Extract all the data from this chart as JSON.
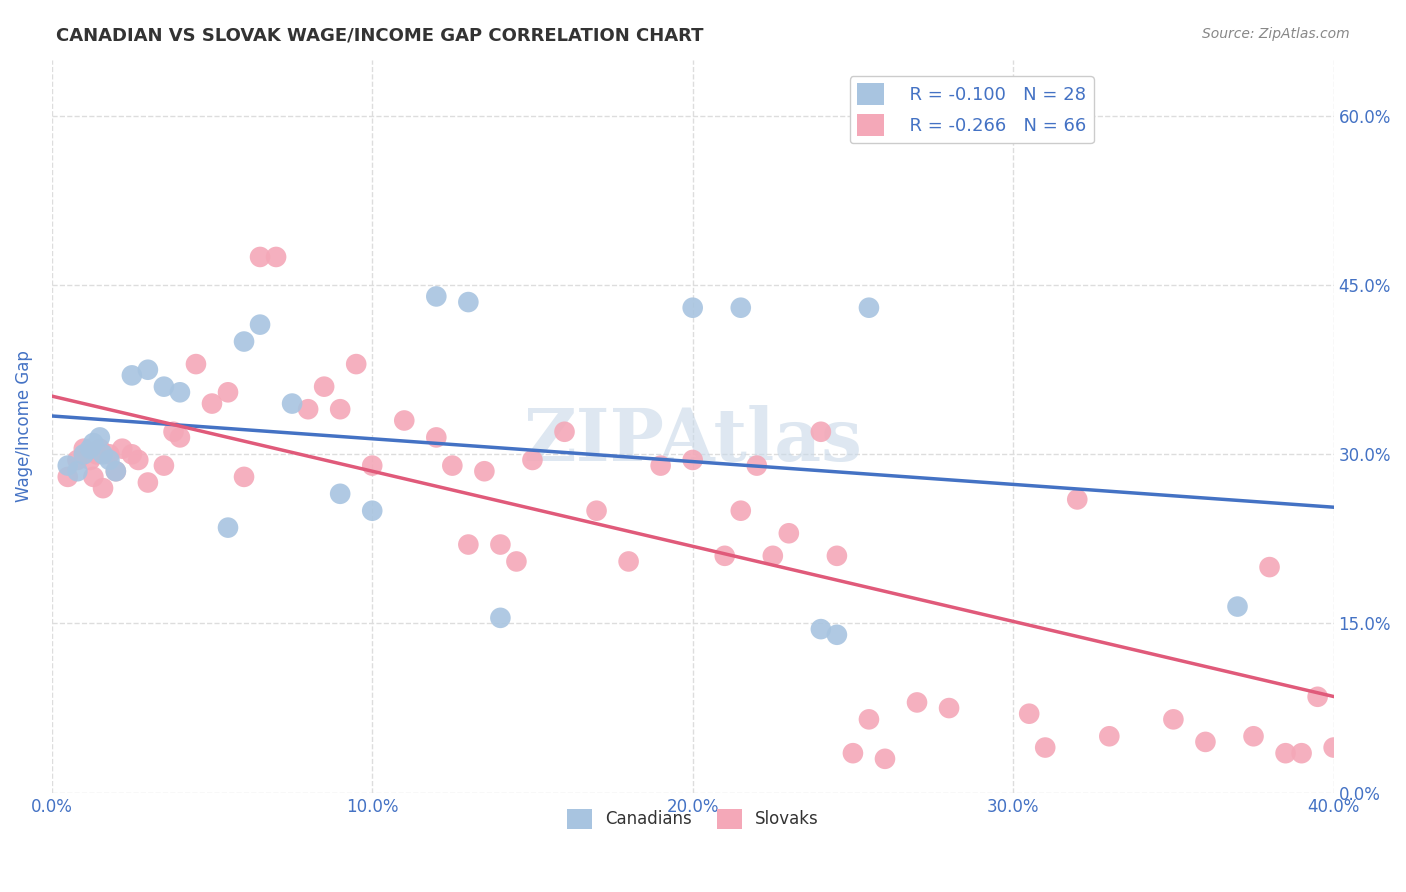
{
  "title": "CANADIAN VS SLOVAK WAGE/INCOME GAP CORRELATION CHART",
  "source_text": "Source: ZipAtlas.com",
  "ylabel": "Wage/Income Gap",
  "xlabel_ticks": [
    "0.0%",
    "10.0%",
    "20.0%",
    "30.0%",
    "40.0%"
  ],
  "ylabel_ticks": [
    "0.0%",
    "15.0%",
    "30.0%",
    "45.0%",
    "60.0%"
  ],
  "xlim": [
    0.0,
    0.4
  ],
  "ylim": [
    0.0,
    0.65
  ],
  "canadians_x": [
    0.005,
    0.008,
    0.01,
    0.012,
    0.013,
    0.015,
    0.016,
    0.018,
    0.02,
    0.025,
    0.03,
    0.035,
    0.04,
    0.055,
    0.06,
    0.065,
    0.075,
    0.09,
    0.1,
    0.12,
    0.13,
    0.14,
    0.2,
    0.215,
    0.24,
    0.245,
    0.255,
    0.37
  ],
  "canadians_y": [
    0.29,
    0.285,
    0.3,
    0.305,
    0.31,
    0.315,
    0.3,
    0.295,
    0.285,
    0.37,
    0.375,
    0.36,
    0.355,
    0.235,
    0.4,
    0.415,
    0.345,
    0.265,
    0.25,
    0.44,
    0.435,
    0.155,
    0.43,
    0.43,
    0.145,
    0.14,
    0.43,
    0.165
  ],
  "slovaks_x": [
    0.005,
    0.008,
    0.01,
    0.012,
    0.013,
    0.014,
    0.015,
    0.016,
    0.018,
    0.02,
    0.022,
    0.025,
    0.027,
    0.03,
    0.035,
    0.038,
    0.04,
    0.045,
    0.05,
    0.055,
    0.06,
    0.065,
    0.07,
    0.08,
    0.085,
    0.09,
    0.095,
    0.1,
    0.11,
    0.12,
    0.125,
    0.13,
    0.135,
    0.14,
    0.145,
    0.15,
    0.16,
    0.17,
    0.18,
    0.19,
    0.2,
    0.21,
    0.215,
    0.22,
    0.225,
    0.23,
    0.24,
    0.245,
    0.25,
    0.255,
    0.26,
    0.27,
    0.28,
    0.3,
    0.305,
    0.31,
    0.32,
    0.33,
    0.35,
    0.36,
    0.375,
    0.38,
    0.385,
    0.39,
    0.395,
    0.4
  ],
  "slovaks_y": [
    0.28,
    0.295,
    0.305,
    0.295,
    0.28,
    0.3,
    0.305,
    0.27,
    0.3,
    0.285,
    0.305,
    0.3,
    0.295,
    0.275,
    0.29,
    0.32,
    0.315,
    0.38,
    0.345,
    0.355,
    0.28,
    0.475,
    0.475,
    0.34,
    0.36,
    0.34,
    0.38,
    0.29,
    0.33,
    0.315,
    0.29,
    0.22,
    0.285,
    0.22,
    0.205,
    0.295,
    0.32,
    0.25,
    0.205,
    0.29,
    0.295,
    0.21,
    0.25,
    0.29,
    0.21,
    0.23,
    0.32,
    0.21,
    0.035,
    0.065,
    0.03,
    0.08,
    0.075,
    0.615,
    0.07,
    0.04,
    0.26,
    0.05,
    0.065,
    0.045,
    0.05,
    0.2,
    0.035,
    0.035,
    0.085,
    0.04
  ],
  "canadian_color": "#a8c4e0",
  "slovak_color": "#f4a8b8",
  "canadian_line_color": "#4472c4",
  "slovak_line_color": "#e05a7a",
  "legend_r_canadian": "R = -0.100",
  "legend_n_canadian": "N = 28",
  "legend_r_slovak": "R = -0.266",
  "legend_n_slovak": "N = 66",
  "legend_label_canadian": "Canadians",
  "legend_label_slovak": "Slovaks",
  "watermark_text": "ZIPAtlas",
  "watermark_color": "#c8d8e8",
  "background_color": "#ffffff",
  "grid_color": "#dddddd",
  "title_color": "#333333",
  "axis_label_color": "#4472c4",
  "tick_color": "#4472c4",
  "source_color": "#888888"
}
